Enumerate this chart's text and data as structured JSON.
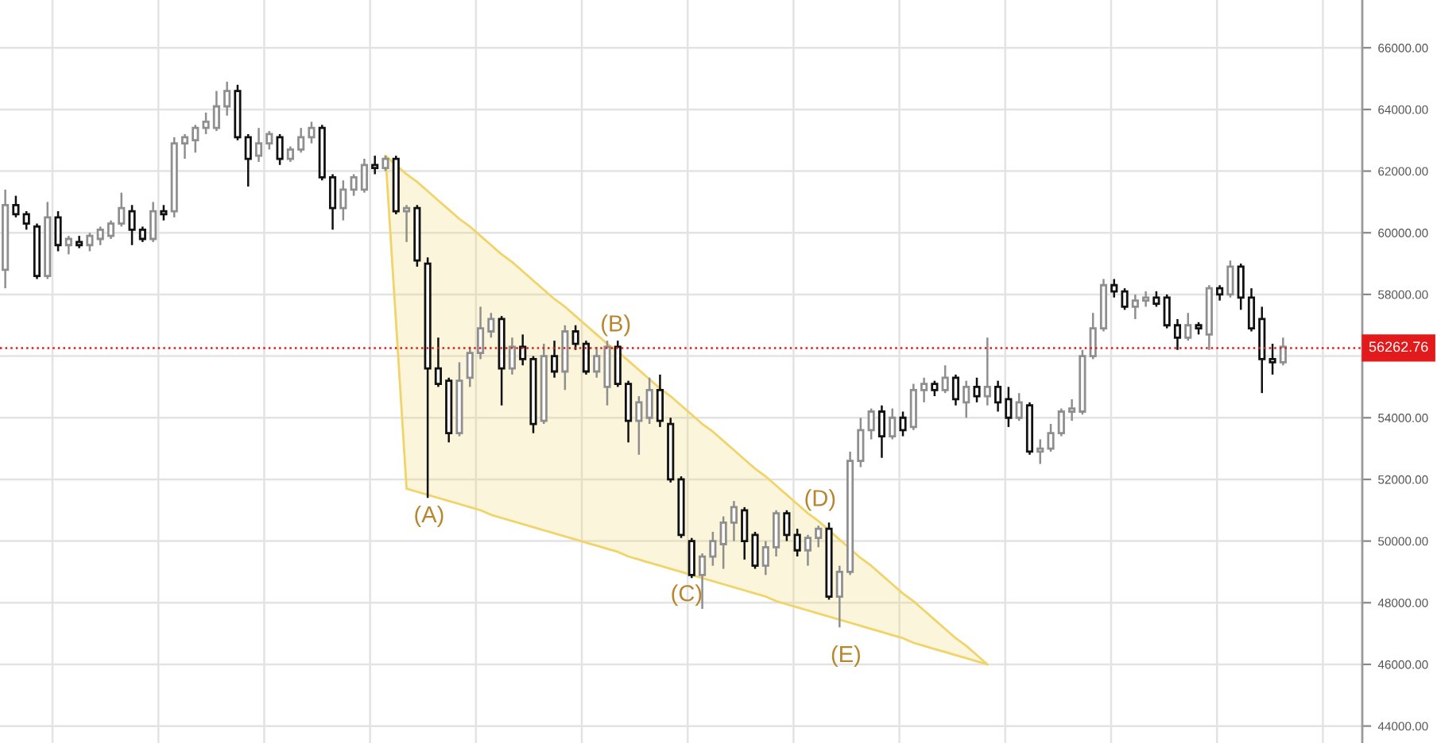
{
  "chart_data": {
    "type": "candlestick",
    "categories": [
      null,
      null,
      null,
      null,
      null,
      null,
      null,
      null,
      null,
      null,
      null,
      null,
      null,
      null,
      null,
      null,
      null,
      null,
      null,
      null,
      null,
      null,
      null,
      null,
      null,
      null,
      null,
      null,
      null,
      null,
      null,
      null,
      null,
      null,
      null,
      null,
      null,
      null,
      null,
      null,
      null,
      null,
      null,
      null,
      null,
      null,
      null,
      null,
      null,
      null,
      null,
      null,
      null,
      null,
      null,
      null,
      null,
      null,
      null,
      null,
      null,
      null,
      null,
      null,
      null,
      null,
      null,
      null,
      null,
      null,
      null,
      null,
      null,
      null,
      null,
      null,
      null,
      null,
      null,
      null,
      null,
      null,
      null,
      null,
      null,
      null,
      null,
      null,
      null,
      null,
      null,
      null,
      null,
      null,
      null,
      null,
      null,
      null,
      null,
      null,
      null,
      null,
      null,
      null,
      null,
      null,
      null,
      null,
      null,
      null,
      null,
      null,
      null,
      null,
      null,
      null,
      null,
      null,
      null,
      null,
      null,
      null,
      null,
      null,
      null,
      null,
      null,
      null,
      null
    ],
    "colors": [
      "#8f8f8f",
      "#111111",
      "#111111",
      "#111111",
      "#8f8f8f",
      "#111111",
      "#8f8f8f",
      "#111111",
      "#8f8f8f",
      "#8f8f8f",
      "#8f8f8f",
      "#8f8f8f",
      "#111111",
      "#111111",
      "#8f8f8f",
      "#111111",
      "#8f8f8f",
      "#8f8f8f",
      "#8f8f8f",
      "#8f8f8f",
      "#8f8f8f",
      "#8f8f8f",
      "#111111",
      "#111111",
      "#8f8f8f",
      "#8f8f8f",
      "#111111",
      "#8f8f8f",
      "#8f8f8f",
      "#8f8f8f",
      "#111111",
      "#111111",
      "#8f8f8f",
      "#8f8f8f",
      "#8f8f8f",
      "#111111",
      "#8f8f8f",
      "#111111",
      "#8f8f8f",
      "#111111",
      "#111111",
      "#111111",
      "#111111",
      "#8f8f8f",
      "#8f8f8f",
      "#8f8f8f",
      "#8f8f8f",
      "#111111",
      "#8f8f8f",
      "#111111",
      "#111111",
      "#8f8f8f",
      "#111111",
      "#8f8f8f",
      "#111111",
      "#111111",
      "#8f8f8f",
      "#8f8f8f",
      "#111111",
      "#111111",
      "#8f8f8f",
      "#8f8f8f",
      "#111111",
      "#111111",
      "#111111",
      "#111111",
      "#8f8f8f",
      "#8f8f8f",
      "#8f8f8f",
      "#8f8f8f",
      "#111111",
      "#111111",
      "#8f8f8f",
      "#8f8f8f",
      "#111111",
      "#111111",
      "#8f8f8f",
      "#8f8f8f",
      "#111111",
      "#8f8f8f",
      "#8f8f8f",
      "#8f8f8f",
      "#8f8f8f",
      "#111111",
      "#8f8f8f",
      "#111111",
      "#8f8f8f",
      "#8f8f8f",
      "#111111",
      "#8f8f8f",
      "#111111",
      "#8f8f8f",
      "#111111",
      "#8f8f8f",
      "#111111",
      "#111111",
      "#8f8f8f",
      "#111111",
      "#8f8f8f",
      "#8f8f8f",
      "#8f8f8f",
      "#8f8f8f",
      "#8f8f8f",
      "#8f8f8f",
      "#8f8f8f",
      "#111111",
      "#111111",
      "#8f8f8f",
      "#8f8f8f",
      "#111111",
      "#111111",
      "#111111",
      "#8f8f8f",
      "#111111",
      "#8f8f8f",
      "#111111",
      "#8f8f8f",
      "#111111",
      "#111111",
      "#111111",
      "#111111",
      "#8f8f8f",
      null,
      null,
      null,
      null,
      null,
      null,
      null
    ],
    "ohlc": [
      [
        58800,
        61400,
        58200,
        60900
      ],
      [
        60900,
        61200,
        60500,
        60600
      ],
      [
        60600,
        60700,
        60100,
        60300
      ],
      [
        60200,
        60300,
        58500,
        58600
      ],
      [
        58600,
        61000,
        58500,
        60500
      ],
      [
        60500,
        60700,
        59400,
        59600
      ],
      [
        59600,
        59900,
        59300,
        59800
      ],
      [
        59700,
        59900,
        59500,
        59600
      ],
      [
        59600,
        60000,
        59400,
        59900
      ],
      [
        59800,
        60200,
        59600,
        60100
      ],
      [
        59900,
        60400,
        59800,
        60300
      ],
      [
        60300,
        61300,
        60200,
        60800
      ],
      [
        60700,
        60900,
        59600,
        60100
      ],
      [
        60100,
        60200,
        59700,
        59800
      ],
      [
        59800,
        61000,
        59700,
        60700
      ],
      [
        60700,
        60900,
        60400,
        60600
      ],
      [
        60700,
        63100,
        60500,
        62900
      ],
      [
        62900,
        63200,
        62400,
        63100
      ],
      [
        63000,
        63500,
        62600,
        63400
      ],
      [
        63400,
        63900,
        63200,
        63600
      ],
      [
        63400,
        64600,
        63300,
        64100
      ],
      [
        64100,
        64900,
        63800,
        64600
      ],
      [
        64600,
        64800,
        63000,
        63100
      ],
      [
        63100,
        63200,
        61500,
        62400
      ],
      [
        62500,
        63400,
        62300,
        62900
      ],
      [
        62900,
        63300,
        62700,
        63200
      ],
      [
        63100,
        63200,
        62200,
        62400
      ],
      [
        62400,
        62800,
        62300,
        62700
      ],
      [
        62700,
        63400,
        62600,
        63100
      ],
      [
        63100,
        63600,
        62900,
        63400
      ],
      [
        63400,
        63500,
        61700,
        61800
      ],
      [
        61800,
        61900,
        60100,
        60800
      ],
      [
        60800,
        61700,
        60400,
        61400
      ],
      [
        61400,
        61900,
        61200,
        61800
      ],
      [
        61400,
        62400,
        61300,
        62200
      ],
      [
        62200,
        62500,
        61900,
        62100
      ],
      [
        62100,
        62500,
        62000,
        62400
      ],
      [
        62400,
        62500,
        60600,
        60700
      ],
      [
        60700,
        60900,
        59700,
        60800
      ],
      [
        60800,
        60900,
        58900,
        59100
      ],
      [
        59000,
        59200,
        51400,
        55600
      ],
      [
        55600,
        56600,
        55000,
        55100
      ],
      [
        55200,
        55300,
        53200,
        53500
      ],
      [
        53500,
        55800,
        53400,
        55200
      ],
      [
        55300,
        56300,
        55000,
        56100
      ],
      [
        56100,
        57600,
        55900,
        56900
      ],
      [
        56800,
        57400,
        56600,
        57200
      ],
      [
        57200,
        57300,
        54400,
        55600
      ],
      [
        55600,
        56600,
        55400,
        56300
      ],
      [
        56300,
        56700,
        55700,
        55900
      ],
      [
        55900,
        56000,
        53500,
        53800
      ],
      [
        53900,
        56400,
        53800,
        56000
      ],
      [
        56000,
        56500,
        55300,
        55500
      ],
      [
        55500,
        57000,
        54900,
        56800
      ],
      [
        56800,
        57000,
        56200,
        56400
      ],
      [
        56400,
        56500,
        55400,
        55500
      ],
      [
        55500,
        56300,
        55300,
        56000
      ],
      [
        55000,
        56500,
        54400,
        56300
      ],
      [
        56300,
        56500,
        55000,
        55100
      ],
      [
        55100,
        55200,
        53200,
        53900
      ],
      [
        53900,
        54700,
        52800,
        54500
      ],
      [
        54000,
        55300,
        53800,
        54900
      ],
      [
        54900,
        55400,
        53700,
        53900
      ],
      [
        53800,
        54000,
        51900,
        52000
      ],
      [
        52000,
        52100,
        50100,
        50200
      ],
      [
        50000,
        50100,
        48800,
        48900
      ],
      [
        48900,
        49600,
        47800,
        49500
      ],
      [
        49500,
        50300,
        49200,
        50000
      ],
      [
        49900,
        50800,
        49100,
        50600
      ],
      [
        50600,
        51300,
        50000,
        51100
      ],
      [
        51000,
        51100,
        49400,
        50000
      ],
      [
        50200,
        50300,
        49100,
        49200
      ],
      [
        49200,
        50000,
        48900,
        49800
      ],
      [
        49800,
        51000,
        49500,
        50900
      ],
      [
        50900,
        51000,
        50000,
        50200
      ],
      [
        50200,
        50400,
        49500,
        49700
      ],
      [
        49700,
        50200,
        49200,
        50100
      ],
      [
        50100,
        50500,
        49800,
        50400
      ],
      [
        50400,
        50600,
        48100,
        48200
      ],
      [
        48200,
        49200,
        47200,
        49000
      ],
      [
        49000,
        52900,
        48900,
        52600
      ],
      [
        52600,
        54000,
        52400,
        53600
      ],
      [
        53600,
        54300,
        53300,
        54200
      ],
      [
        54200,
        54400,
        52700,
        53400
      ],
      [
        53400,
        54300,
        53300,
        54000
      ],
      [
        54000,
        54200,
        53400,
        53600
      ],
      [
        53700,
        55100,
        53600,
        54900
      ],
      [
        54900,
        55300,
        54500,
        55100
      ],
      [
        55100,
        55200,
        54700,
        54900
      ],
      [
        54900,
        55700,
        54800,
        55300
      ],
      [
        55300,
        55400,
        54400,
        54600
      ],
      [
        54500,
        55200,
        54000,
        55000
      ],
      [
        55000,
        55300,
        54500,
        54700
      ],
      [
        54700,
        56600,
        54400,
        55000
      ],
      [
        55000,
        55200,
        54200,
        54500
      ],
      [
        54600,
        55000,
        53700,
        54000
      ],
      [
        54000,
        54800,
        53900,
        54500
      ],
      [
        54400,
        54500,
        52800,
        52900
      ],
      [
        52900,
        53300,
        52500,
        53000
      ],
      [
        53000,
        53800,
        52900,
        53500
      ],
      [
        53500,
        54300,
        53400,
        54200
      ],
      [
        54200,
        54600,
        53900,
        54300
      ],
      [
        54200,
        56200,
        54100,
        56000
      ],
      [
        56000,
        57400,
        55900,
        56900
      ],
      [
        56900,
        58500,
        56800,
        58300
      ],
      [
        58300,
        58500,
        57900,
        58100
      ],
      [
        58100,
        58200,
        57500,
        57600
      ],
      [
        57600,
        58000,
        57200,
        57800
      ],
      [
        57800,
        58100,
        57600,
        57900
      ],
      [
        57900,
        58100,
        57600,
        57700
      ],
      [
        57900,
        58000,
        56900,
        57000
      ],
      [
        57000,
        57200,
        56200,
        56600
      ],
      [
        56600,
        57400,
        56500,
        57000
      ],
      [
        57000,
        57100,
        56700,
        56900
      ],
      [
        56700,
        58300,
        56200,
        58200
      ],
      [
        58200,
        58300,
        57800,
        58000
      ],
      [
        58000,
        59100,
        57900,
        58900
      ],
      [
        58900,
        59000,
        57500,
        57900
      ],
      [
        57900,
        58200,
        56800,
        56900
      ],
      [
        57200,
        57600,
        54800,
        55900
      ],
      [
        55900,
        56400,
        55400,
        55800
      ],
      [
        55800,
        56600,
        55700,
        56300
      ],
      null,
      null,
      null,
      null,
      null,
      null,
      null
    ],
    "series": [
      {
        "type": "line",
        "color": "#f0d46a",
        "values": [
          null,
          null,
          null,
          null,
          null,
          null,
          null,
          null,
          null,
          null,
          null,
          null,
          null,
          null,
          null,
          null,
          null,
          null,
          null,
          null,
          null,
          null,
          null,
          null,
          null,
          null,
          null,
          null,
          null,
          null,
          null,
          null,
          null,
          null,
          null,
          null,
          62500,
          62200,
          61900,
          61650,
          61350,
          61050,
          60750,
          60450,
          60200,
          59900,
          59600,
          59300,
          59050,
          58750,
          58450,
          58150,
          57850,
          57600,
          57300,
          57000,
          56700,
          56400,
          56150,
          55850,
          55550,
          55250,
          54950,
          54700,
          54400,
          54100,
          53800,
          53550,
          53250,
          52950,
          52650,
          52350,
          52100,
          51800,
          51500,
          51200,
          50900,
          50650,
          50350,
          50050,
          49750,
          49450,
          49200,
          48900,
          48600,
          48300,
          48050,
          47750,
          47450,
          47150,
          46850,
          46600,
          46300,
          46000,
          null,
          null,
          null,
          null,
          null,
          null,
          null,
          null,
          null,
          null,
          null,
          null,
          null,
          null,
          null,
          null,
          null,
          null,
          null,
          null,
          null,
          null,
          null,
          null,
          null,
          null,
          null,
          null,
          null,
          null,
          null,
          null,
          null,
          null,
          null
        ],
        "upper": [
          null,
          null,
          null,
          null,
          null,
          null,
          null,
          null,
          null,
          null,
          null,
          null,
          null,
          null,
          null,
          null,
          null,
          null,
          null,
          null,
          null,
          null,
          null,
          null,
          null,
          null,
          null,
          null,
          null,
          null,
          null,
          null,
          null,
          null,
          null,
          null,
          62500,
          62200,
          61900,
          61650,
          61350,
          61050,
          60750,
          60450,
          60200,
          59900,
          59600,
          59300,
          59050,
          58750,
          58450,
          58150,
          57850,
          57600,
          57300,
          57000,
          56700,
          56400,
          56150,
          55850,
          55550,
          55250,
          54950,
          54700,
          54400,
          54100,
          53800,
          53550,
          53250,
          52950,
          52650,
          52350,
          52100,
          51800,
          51500,
          51200,
          50900,
          50650,
          50350,
          50050,
          49750,
          49450,
          49200,
          48900,
          48600,
          48300,
          48050,
          47750,
          47450,
          47150,
          46850,
          46600,
          46300,
          46000,
          null,
          null,
          null,
          null,
          null,
          null,
          null,
          null,
          null,
          null,
          null,
          null,
          null,
          null,
          null,
          null,
          null,
          null,
          null,
          null,
          null,
          null,
          null,
          null,
          null,
          null,
          null,
          null,
          null,
          null,
          null,
          null,
          null,
          null,
          null
        ],
        "lower": [
          null,
          null,
          null,
          null,
          null,
          null,
          null,
          null,
          null,
          null,
          null,
          null,
          null,
          null,
          null,
          null,
          null,
          null,
          null,
          null,
          null,
          null,
          null,
          null,
          null,
          null,
          null,
          null,
          null,
          null,
          null,
          null,
          null,
          null,
          null,
          null,
          62500,
          57100,
          51700,
          51600,
          51500,
          51400,
          51300,
          51200,
          51100,
          51000,
          50850,
          50750,
          50650,
          50550,
          50450,
          50350,
          50250,
          50150,
          50050,
          49950,
          49850,
          49750,
          49650,
          49500,
          49400,
          49300,
          49200,
          49100,
          49000,
          48900,
          48800,
          48700,
          48600,
          48500,
          48400,
          48300,
          48200,
          48050,
          47950,
          47850,
          47750,
          47650,
          47550,
          47450,
          47350,
          47250,
          47150,
          47050,
          46950,
          46850,
          46700,
          46600,
          46500,
          46400,
          46300,
          46200,
          46100,
          46000,
          null,
          null,
          null,
          null,
          null,
          null,
          null,
          null,
          null,
          null,
          null,
          null,
          null,
          null,
          null,
          null,
          null,
          null,
          null,
          null,
          null,
          null,
          null,
          null,
          null,
          null,
          null,
          null,
          null,
          null,
          null,
          null,
          null,
          null,
          null
        ]
      },
      {
        "type": "line",
        "color": "#f0d46a",
        "values": [
          null,
          null,
          null,
          null,
          null,
          null,
          null,
          null,
          null,
          null,
          null,
          null,
          null,
          null,
          null,
          null,
          null,
          null,
          null,
          null,
          null,
          null,
          null,
          null,
          null,
          null,
          null,
          null,
          null,
          null,
          null,
          null,
          null,
          null,
          null,
          null,
          62500,
          57100,
          51700,
          51600,
          51500,
          51400,
          51300,
          51200,
          51100,
          51000,
          50850,
          50750,
          50650,
          50550,
          50450,
          50350,
          50250,
          50150,
          50050,
          49950,
          49850,
          49750,
          49650,
          49500,
          49400,
          49300,
          49200,
          49100,
          49000,
          48900,
          48800,
          48700,
          48600,
          48500,
          48400,
          48300,
          48200,
          48050,
          47950,
          47850,
          47750,
          47650,
          47550,
          47450,
          47350,
          47250,
          47150,
          47050,
          46950,
          46850,
          46700,
          46600,
          46500,
          46400,
          46300,
          46200,
          46100,
          46000,
          null,
          null,
          null,
          null,
          null,
          null,
          null,
          null,
          null,
          null,
          null,
          null,
          null,
          null,
          null,
          null,
          null,
          null,
          null,
          null,
          null,
          null,
          null,
          null,
          null,
          null,
          null,
          null,
          null,
          null,
          null,
          null,
          null,
          null,
          null
        ]
      }
    ],
    "ylim": [
      43450,
      67550
    ],
    "yticks": [
      {
        "value": 44000,
        "label": "44000.00"
      },
      {
        "value": 46000,
        "label": "46000.00"
      },
      {
        "value": 48000,
        "label": "48000.00"
      },
      {
        "value": 50000,
        "label": "50000.00"
      },
      {
        "value": 52000,
        "label": "52000.00"
      },
      {
        "value": 54000,
        "label": "54000.00"
      },
      {
        "value": 56000,
        "label": null
      },
      {
        "value": 58000,
        "label": "58000.00"
      },
      {
        "value": 60000,
        "label": "60000.00"
      },
      {
        "value": 62000,
        "label": "62000.00"
      },
      {
        "value": 64000,
        "label": "64000.00"
      },
      {
        "value": 66000,
        "label": "66000.00"
      }
    ],
    "grid": true,
    "tick_labels": "y",
    "ref_lines": [
      {
        "axis": "y",
        "value": 56262.76,
        "label": "56262.76",
        "color": "#e31a1c",
        "line_style": "dotted"
      }
    ],
    "annotations": [
      "(A)",
      "(B)",
      "(C)",
      "(D)",
      "(E)"
    ]
  }
}
